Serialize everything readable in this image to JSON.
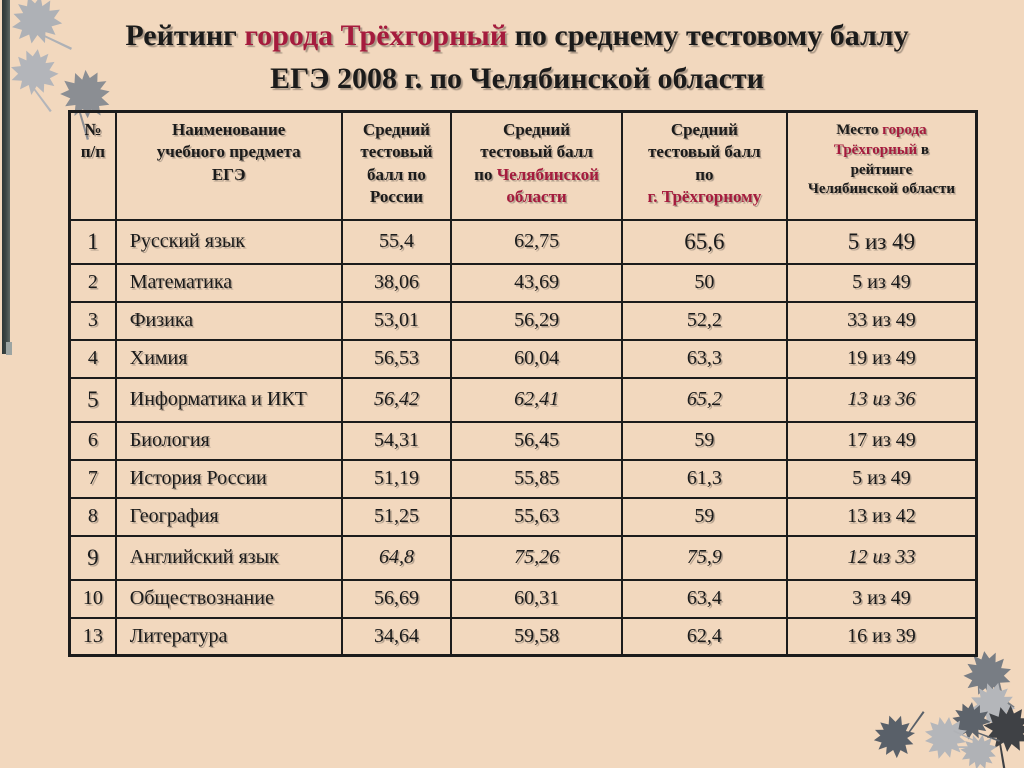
{
  "title": {
    "parts": [
      {
        "t": "Рейтинг ",
        "red": false
      },
      {
        "t": "города Трёхгорный",
        "red": true
      },
      {
        "t": " по среднему тестовому баллу",
        "red": false
      }
    ],
    "line2": "ЕГЭ 2008 г. по Челябинской области"
  },
  "table": {
    "headers": [
      {
        "id": "number",
        "parts": [
          {
            "t": "№\nп/п",
            "red": false
          }
        ]
      },
      {
        "id": "subject",
        "parts": [
          {
            "t": "Наименование\nучебного предмета\nЕГЭ",
            "red": false
          }
        ]
      },
      {
        "id": "avg-russia",
        "parts": [
          {
            "t": "Средний\nтестовый\nбалл по\nРоссии",
            "red": false
          }
        ]
      },
      {
        "id": "avg-region",
        "parts": [
          {
            "t": "Средний\nтестовый балл\nпо ",
            "red": false
          },
          {
            "t": "Челябинской\nобласти",
            "red": true
          }
        ]
      },
      {
        "id": "avg-city",
        "parts": [
          {
            "t": "Средний\nтестовый балл\nпо\n",
            "red": false
          },
          {
            "t": "г. Трёхгорному",
            "red": true
          }
        ]
      },
      {
        "id": "rank",
        "parts": [
          {
            "t": "Место ",
            "red": false
          },
          {
            "t": "города\nТрёхгорный",
            "red": true
          },
          {
            "t": " в\nрейтинге\nЧелябинской области",
            "red": false
          }
        ]
      }
    ],
    "rows": [
      {
        "num": "1",
        "subject": "Русский язык",
        "russia": "55,4",
        "region": "62,75",
        "city": "65,6",
        "rank": "5 из 49",
        "style": "large"
      },
      {
        "num": "2",
        "subject": "Математика",
        "russia": "38,06",
        "region": "43,69",
        "city": "50",
        "rank": "5 из 49",
        "style": "plain"
      },
      {
        "num": "3",
        "subject": "Физика",
        "russia": "53,01",
        "region": "56,29",
        "city": "52,2",
        "rank": "33 из 49",
        "style": "plain"
      },
      {
        "num": "4",
        "subject": "Химия",
        "russia": "56,53",
        "region": "60,04",
        "city": "63,3",
        "rank": "19 из 49",
        "style": "plain"
      },
      {
        "num": "5",
        "subject": "Информатика и ИКТ",
        "russia": "56,42",
        "region": "62,41",
        "city": "65,2",
        "rank": "13 из 36",
        "style": "italic"
      },
      {
        "num": "6",
        "subject": "Биология",
        "russia": "54,31",
        "region": "56,45",
        "city": "59",
        "rank": "17 из 49",
        "style": "plain"
      },
      {
        "num": "7",
        "subject": "История России",
        "russia": "51,19",
        "region": "55,85",
        "city": "61,3",
        "rank": "5 из 49",
        "style": "plain"
      },
      {
        "num": "8",
        "subject": "География",
        "russia": "51,25",
        "region": "55,63",
        "city": "59",
        "rank": "13 из 42",
        "style": "plain"
      },
      {
        "num": "9",
        "subject": "Английский язык",
        "russia": "64,8",
        "region": "75,26",
        "city": "75,9",
        "rank": "12 из 33",
        "style": "italic"
      },
      {
        "num": "10",
        "subject": "Обществознание",
        "russia": "56,69",
        "region": "60,31",
        "city": "63,4",
        "rank": "3 из 49",
        "style": "plain"
      },
      {
        "num": "13",
        "subject": "Литература",
        "russia": "34,64",
        "region": "59,58",
        "city": "62,4",
        "rank": "16 из 39",
        "style": "plain"
      }
    ]
  },
  "colors": {
    "background": "#f2d8be",
    "accent_red": "#a51b3d",
    "text": "#1b1b1b",
    "border": "#1c1c1c",
    "bar_dark": "#2d3737",
    "leaf_light": "#b2b4b8",
    "leaf_medium": "#84868a",
    "leaf_dark": "#45474b"
  },
  "icons": {
    "top_left": "maple-leaves",
    "bottom_right": "maple-leaves"
  }
}
